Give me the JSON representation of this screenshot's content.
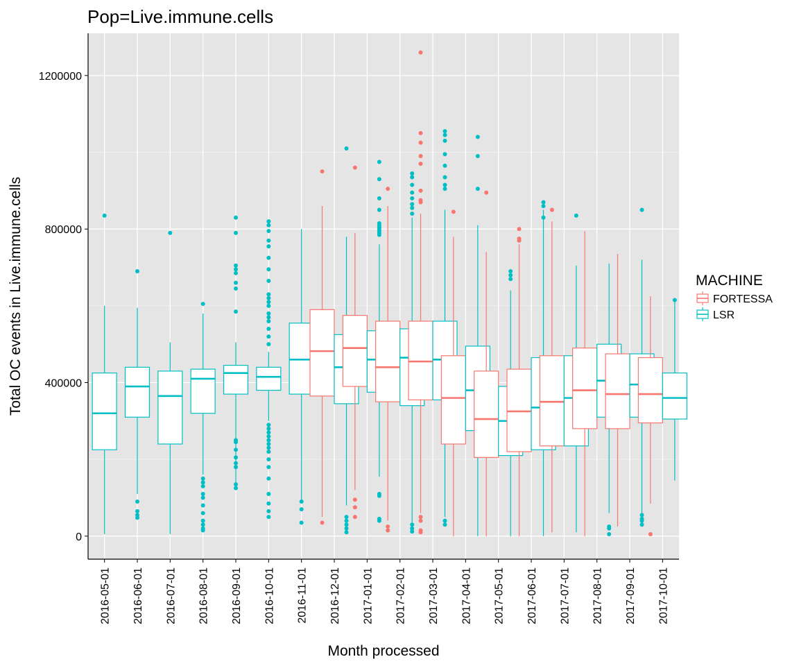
{
  "chart_data": {
    "type": "boxplot",
    "title": "Pop=Live.immune.cells",
    "xlabel": "Month processed",
    "ylabel": "Total OC events in Live.immune.cells",
    "ylim": [
      -60000,
      1310000
    ],
    "yticks": [
      0,
      400000,
      800000,
      1200000
    ],
    "ytick_labels": [
      "0",
      "400000",
      "800000",
      "1200000"
    ],
    "grid": true,
    "categories": [
      "2016-05-01",
      "2016-06-01",
      "2016-07-01",
      "2016-08-01",
      "2016-09-01",
      "2016-10-01",
      "2016-11-01",
      "2016-12-01",
      "2017-01-01",
      "2017-02-01",
      "2017-03-01",
      "2017-04-01",
      "2017-05-01",
      "2017-06-01",
      "2017-07-01",
      "2017-08-01",
      "2017-09-01",
      "2017-10-01"
    ],
    "legend": {
      "title": "MACHINE",
      "position": "right",
      "entries": [
        {
          "name": "FORTESSA",
          "color": "#F8766D"
        },
        {
          "name": "LSR",
          "color": "#00BFC4"
        }
      ]
    },
    "series": [
      {
        "name": "FORTESSA",
        "color": "#F8766D",
        "boxes": [
          null,
          null,
          null,
          null,
          null,
          null,
          null,
          {
            "min": 50000,
            "q1": 365000,
            "median": 482000,
            "q3": 590000,
            "max": 860000,
            "outliers": [
              950000,
              35000
            ]
          },
          {
            "min": 120000,
            "q1": 390000,
            "median": 490000,
            "q3": 575000,
            "max": 790000,
            "outliers": [
              960000,
              95000,
              75000,
              50000
            ]
          },
          {
            "min": 40000,
            "q1": 350000,
            "median": 440000,
            "q3": 560000,
            "max": 860000,
            "outliers": [
              905000,
              25000,
              15000
            ]
          },
          {
            "min": 60000,
            "q1": 355000,
            "median": 455000,
            "q3": 560000,
            "max": 840000,
            "outliers": [
              1260000,
              1050000,
              1025000,
              990000,
              970000,
              900000,
              875000,
              870000,
              50000,
              40000,
              15000,
              10000
            ]
          },
          {
            "min": 0,
            "q1": 240000,
            "median": 360000,
            "q3": 470000,
            "max": 780000,
            "outliers": [
              845000
            ]
          },
          {
            "min": 0,
            "q1": 205000,
            "median": 305000,
            "q3": 430000,
            "max": 740000,
            "outliers": [
              895000
            ]
          },
          {
            "min": 0,
            "q1": 220000,
            "median": 325000,
            "q3": 435000,
            "max": 760000,
            "outliers": [
              800000,
              775000,
              770000
            ]
          },
          {
            "min": 10000,
            "q1": 235000,
            "median": 350000,
            "q3": 470000,
            "max": 820000,
            "outliers": [
              850000
            ]
          },
          {
            "min": 0,
            "q1": 280000,
            "median": 380000,
            "q3": 490000,
            "max": 795000,
            "outliers": []
          },
          {
            "min": 25000,
            "q1": 280000,
            "median": 370000,
            "q3": 475000,
            "max": 735000,
            "outliers": []
          },
          {
            "min": 85000,
            "q1": 295000,
            "median": 370000,
            "q3": 465000,
            "max": 625000,
            "outliers": [
              5000
            ]
          }
        ]
      },
      {
        "name": "LSR",
        "color": "#00BFC4",
        "boxes": [
          {
            "min": 5000,
            "q1": 225000,
            "median": 320000,
            "q3": 425000,
            "max": 600000,
            "outliers": [
              835000
            ]
          },
          {
            "min": 110000,
            "q1": 310000,
            "median": 390000,
            "q3": 440000,
            "max": 595000,
            "outliers": [
              690000,
              90000,
              65000,
              55000,
              48000
            ]
          },
          {
            "min": 5000,
            "q1": 240000,
            "median": 365000,
            "q3": 430000,
            "max": 505000,
            "outliers": [
              790000
            ]
          },
          {
            "min": 160000,
            "q1": 320000,
            "median": 410000,
            "q3": 435000,
            "max": 580000,
            "outliers": [
              605000,
              150000,
              140000,
              130000,
              110000,
              100000,
              80000,
              60000,
              40000,
              30000,
              20000,
              15000
            ]
          },
          {
            "min": 140000,
            "q1": 370000,
            "median": 425000,
            "q3": 445000,
            "max": 505000,
            "outliers": [
              830000,
              790000,
              705000,
              695000,
              685000,
              660000,
              645000,
              585000,
              250000,
              245000,
              225000,
              205000,
              190000,
              180000,
              135000,
              125000
            ]
          },
          {
            "min": 300000,
            "q1": 380000,
            "median": 415000,
            "q3": 440000,
            "max": 480000,
            "outliers": [
              820000,
              810000,
              795000,
              770000,
              755000,
              725000,
              695000,
              665000,
              630000,
              620000,
              610000,
              600000,
              580000,
              570000,
              560000,
              540000,
              520000,
              500000,
              290000,
              280000,
              270000,
              260000,
              250000,
              240000,
              230000,
              220000,
              200000,
              180000,
              150000,
              110000,
              85000,
              65000,
              50000
            ]
          },
          {
            "min": 90000,
            "q1": 370000,
            "median": 460000,
            "q3": 555000,
            "max": 800000,
            "outliers": [
              90000,
              70000,
              35000
            ]
          },
          {
            "min": 80000,
            "q1": 345000,
            "median": 440000,
            "q3": 525000,
            "max": 780000,
            "outliers": [
              1010000,
              50000,
              40000,
              30000,
              20000,
              10000
            ]
          },
          {
            "min": 155000,
            "q1": 375000,
            "median": 460000,
            "q3": 535000,
            "max": 760000,
            "outliers": [
              975000,
              930000,
              880000,
              850000,
              815000,
              810000,
              805000,
              800000,
              795000,
              790000,
              785000,
              110000,
              105000,
              45000,
              40000
            ]
          },
          {
            "min": 30000,
            "q1": 340000,
            "median": 465000,
            "q3": 540000,
            "max": 830000,
            "outliers": [
              945000,
              935000,
              915000,
              895000,
              880000,
              865000,
              855000,
              840000,
              30000,
              20000,
              12000
            ]
          },
          {
            "min": 50000,
            "q1": 355000,
            "median": 460000,
            "q3": 560000,
            "max": 850000,
            "outliers": [
              1055000,
              1045000,
              1030000,
              995000,
              965000,
              935000,
              915000,
              905000,
              40000,
              30000
            ]
          },
          {
            "min": 0,
            "q1": 275000,
            "median": 380000,
            "q3": 495000,
            "max": 810000,
            "outliers": [
              1040000,
              990000,
              905000
            ]
          },
          {
            "min": 0,
            "q1": 210000,
            "median": 300000,
            "q3": 390000,
            "max": 640000,
            "outliers": [
              690000,
              680000,
              670000
            ]
          },
          {
            "min": 0,
            "q1": 225000,
            "median": 335000,
            "q3": 465000,
            "max": 850000,
            "outliers": [
              870000,
              860000,
              830000
            ]
          },
          {
            "min": 10000,
            "q1": 235000,
            "median": 360000,
            "q3": 470000,
            "max": 705000,
            "outliers": [
              835000
            ]
          },
          {
            "min": 60000,
            "q1": 310000,
            "median": 405000,
            "q3": 500000,
            "max": 710000,
            "outliers": [
              25000,
              20000,
              5000
            ]
          },
          {
            "min": 60000,
            "q1": 310000,
            "median": 395000,
            "q3": 475000,
            "max": 720000,
            "outliers": [
              850000,
              55000,
              45000,
              40000,
              30000
            ]
          },
          {
            "min": 145000,
            "q1": 305000,
            "median": 360000,
            "q3": 425000,
            "max": 615000,
            "outliers": [
              615000
            ]
          }
        ]
      }
    ]
  }
}
